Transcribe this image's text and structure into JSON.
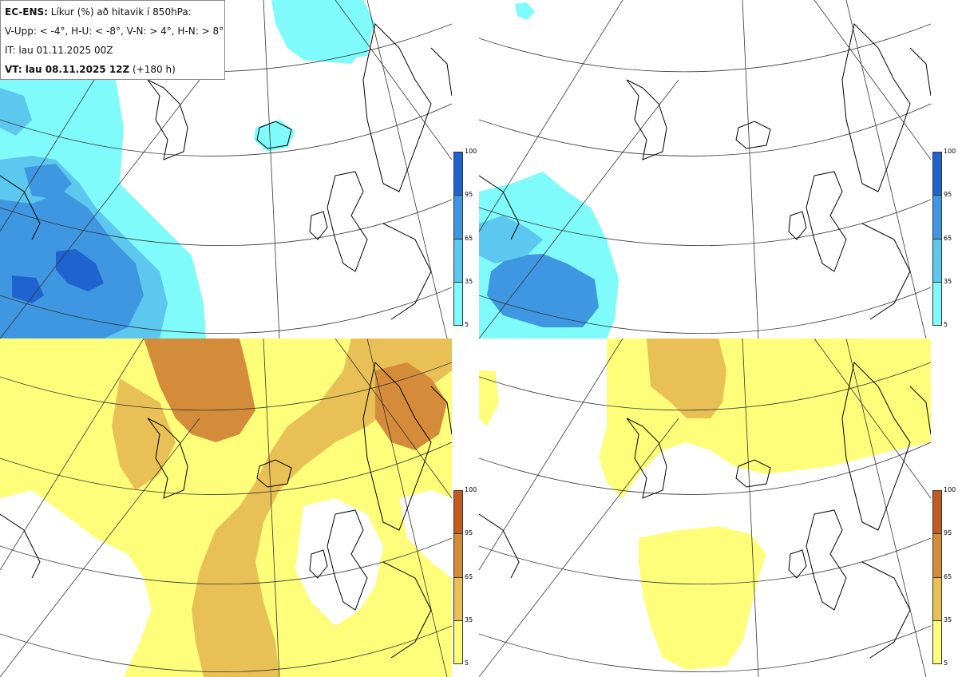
{
  "info": {
    "product": "EC-ENS:",
    "title_rest": "Líkur (%) að hitavik í 850hPa:",
    "legend_line": "V-Upp: < -4°, H-U: < -8°, V-N: > 4°, H-N: > 8°",
    "init_time": "IT: lau 01.11.2025 00Z",
    "valid_prefix": "VT: lau 08.11.2025 12Z",
    "valid_suffix": "(+180 h)"
  },
  "colorbar": {
    "ticks": [
      "100",
      "95",
      "65",
      "35",
      "5"
    ]
  },
  "colors": {
    "cold_levels": [
      "#7ffbfb",
      "#5dc8ef",
      "#3e97e0",
      "#1f63d1"
    ],
    "warm_levels": [
      "#fefe7a",
      "#e8c055",
      "#d58c3a",
      "#c35a1e"
    ],
    "coast": "#000000",
    "grid": "#333333"
  },
  "panels": [
    {
      "name": "V-Upp",
      "scheme": "cold"
    },
    {
      "name": "H-U",
      "scheme": "cold"
    },
    {
      "name": "V-N",
      "scheme": "warm"
    },
    {
      "name": "H-N",
      "scheme": "warm"
    }
  ]
}
